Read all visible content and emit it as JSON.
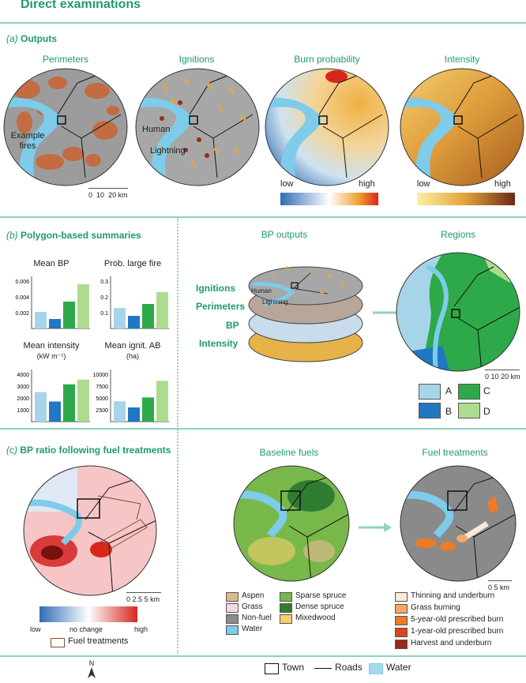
{
  "page_title": "Direct examinations",
  "section_a": {
    "label_letter": "(a)",
    "label_text": "Outputs",
    "panels": [
      "Perimeters",
      "Ignitions",
      "Burn probability",
      "Intensity"
    ],
    "example_fires": "Example fires",
    "human": "Human",
    "lightning": "Lightning",
    "scale": [
      "0",
      "10",
      "20 km"
    ],
    "bp_low": "low",
    "bp_high": "high",
    "int_low": "low",
    "int_high": "high"
  },
  "section_b": {
    "label_letter": "(b)",
    "label_text": "Polygon-based summaries",
    "bp_outputs": "BP outputs",
    "regions": "Regions",
    "layers": [
      "Ignitions",
      "Perimeters",
      "BP",
      "Intensity"
    ],
    "layer_human": "Human",
    "layer_lightning": "Lightning",
    "region_legend": [
      "A",
      "B",
      "C",
      "D"
    ],
    "scale": [
      "0",
      "10",
      "20 km"
    ],
    "colors": {
      "A": "#a8d4ea",
      "B": "#1f78c1",
      "C": "#2ea94a",
      "D": "#addc8f"
    }
  },
  "chart_data": [
    {
      "type": "bar",
      "title": "Mean BP",
      "categories": [
        "A",
        "B",
        "C",
        "D"
      ],
      "values": [
        0.0021,
        0.0012,
        0.0034,
        0.0056
      ],
      "yticks": [
        "0.002",
        "0.004",
        "0.006"
      ],
      "ylim": [
        0,
        0.006
      ]
    },
    {
      "type": "bar",
      "title": "Prob. large fire",
      "categories": [
        "A",
        "B",
        "C",
        "D"
      ],
      "values": [
        0.13,
        0.08,
        0.155,
        0.23
      ],
      "yticks": [
        "0.1",
        "0.2",
        "0.3"
      ],
      "ylim": [
        0,
        0.3
      ]
    },
    {
      "type": "bar",
      "title": "Mean intensity",
      "subtitle": "(kW m⁻¹)",
      "categories": [
        "A",
        "B",
        "C",
        "D"
      ],
      "values": [
        2500,
        1700,
        3150,
        3550
      ],
      "yticks": [
        "1000",
        "2000",
        "3000",
        "4000"
      ],
      "ylim": [
        0,
        4000
      ]
    },
    {
      "type": "bar",
      "title": "Mean ignit. AB",
      "subtitle": "(ha)",
      "categories": [
        "A",
        "B",
        "C",
        "D"
      ],
      "values": [
        4300,
        3000,
        5100,
        8600
      ],
      "yticks": [
        "2500",
        "5000",
        "7500",
        "10000"
      ],
      "ylim": [
        0,
        10000
      ]
    }
  ],
  "section_c": {
    "label_letter": "(c)",
    "label_text": "BP ratio following fuel treatments",
    "baseline": "Baseline fuels",
    "treatments": "Fuel treatments",
    "scale": [
      "0",
      "2.5",
      "5 km"
    ],
    "ratio_low": "low",
    "ratio_mid": "no change",
    "ratio_high": "high",
    "fuel_treatments_label": "Fuel treatments",
    "fuels_legend": [
      {
        "label": "Aspen",
        "color": "#d8b98a"
      },
      {
        "label": "Grass",
        "color": "#f4d7e6"
      },
      {
        "label": "Non-fuel",
        "color": "#8a8a8a"
      },
      {
        "label": "Water",
        "color": "#7ecbea"
      },
      {
        "label": "Sparse spruce",
        "color": "#78b84a"
      },
      {
        "label": "Dense spruce",
        "color": "#2f7d32"
      },
      {
        "label": "Mixedwood",
        "color": "#f5cf6e"
      }
    ],
    "treat_legend": [
      {
        "label": "Thinning and underburn",
        "color": "#fbe9d9"
      },
      {
        "label": "Grass burning",
        "color": "#f5a766"
      },
      {
        "label": "5-year-old prescribed burn",
        "color": "#ef7a28"
      },
      {
        "label": "1-year-old prescribed burn",
        "color": "#d9461c"
      },
      {
        "label": "Harvest and underburn",
        "color": "#9a2a17"
      }
    ]
  },
  "footer": {
    "north": "N",
    "town": "Town",
    "roads": "Roads",
    "water": "Water"
  }
}
